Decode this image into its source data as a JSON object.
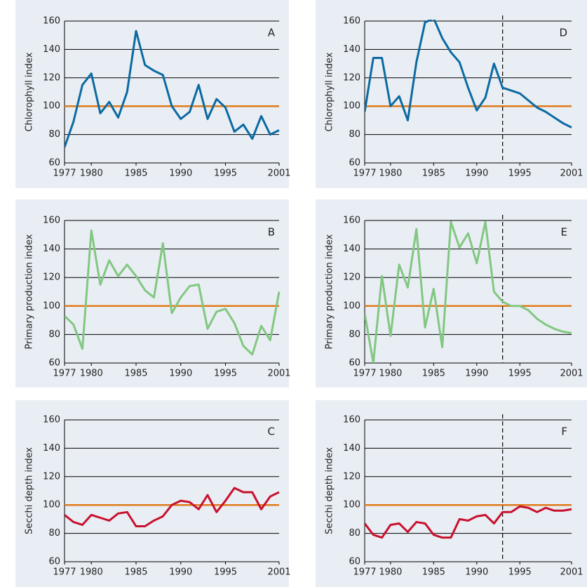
{
  "chart_data": [
    {
      "type": "line",
      "label": "A",
      "ylabel": "Chlorophyll index",
      "color": "#0b6aa2",
      "reference_line": 100,
      "reference_color": "#e07b1a",
      "x": [
        1977,
        1978,
        1979,
        1980,
        1981,
        1982,
        1983,
        1984,
        1985,
        1986,
        1987,
        1988,
        1989,
        1990,
        1991,
        1992,
        1993,
        1994,
        1995,
        1996,
        1997,
        1998,
        1999,
        2000,
        2001
      ],
      "values": [
        71,
        89,
        115,
        123,
        95,
        103,
        92,
        110,
        153,
        129,
        125,
        122,
        100,
        91,
        96,
        115,
        91,
        105,
        99,
        82,
        87,
        77,
        93,
        80,
        83
      ],
      "xlim": [
        1977,
        2001
      ],
      "xticks": [
        1977,
        1980,
        1985,
        1990,
        1995,
        2001
      ],
      "ylim": [
        60,
        160
      ],
      "yticks": [
        60,
        80,
        100,
        120,
        140,
        160
      ],
      "grid": true
    },
    {
      "type": "line",
      "label": "D",
      "ylabel": "Chlorophyll index",
      "color": "#0b6aa2",
      "reference_line": 100,
      "reference_color": "#e07b1a",
      "vline_x": 1993,
      "x": [
        1977,
        1978,
        1979,
        1980,
        1981,
        1982,
        1983,
        1984,
        1985,
        1986,
        1987,
        1988,
        1989,
        1990,
        1991,
        1992,
        1993,
        1994,
        1995,
        1996,
        1997,
        1998,
        1999,
        2000,
        2001
      ],
      "values": [
        96,
        134,
        134,
        100,
        107,
        90,
        131,
        159,
        162,
        148,
        138,
        131,
        113,
        97,
        106,
        130,
        113,
        111,
        109,
        104,
        99,
        96,
        92,
        88,
        85
      ],
      "xlim": [
        1977,
        2001
      ],
      "xticks": [
        1977,
        1980,
        1985,
        1990,
        1995,
        2001
      ],
      "ylim": [
        60,
        160
      ],
      "yticks": [
        60,
        80,
        100,
        120,
        140,
        160
      ],
      "grid": true
    },
    {
      "type": "line",
      "label": "B",
      "ylabel": "Primary production index",
      "color": "#82c782",
      "reference_line": 100,
      "reference_color": "#e07b1a",
      "x": [
        1977,
        1978,
        1979,
        1980,
        1981,
        1982,
        1983,
        1984,
        1985,
        1986,
        1987,
        1988,
        1989,
        1990,
        1991,
        1992,
        1993,
        1994,
        1995,
        1996,
        1997,
        1998,
        1999,
        2000,
        2001
      ],
      "values": [
        93,
        87,
        70,
        153,
        115,
        132,
        121,
        129,
        121,
        111,
        106,
        144,
        95,
        106,
        114,
        115,
        84,
        96,
        98,
        88,
        72,
        66,
        86,
        76,
        110
      ],
      "xlim": [
        1977,
        2001
      ],
      "xticks": [
        1977,
        1980,
        1985,
        1990,
        1995,
        2001
      ],
      "ylim": [
        60,
        160
      ],
      "yticks": [
        60,
        80,
        100,
        120,
        140,
        160
      ],
      "grid": true
    },
    {
      "type": "line",
      "label": "E",
      "ylabel": "Primary production index",
      "color": "#82c782",
      "reference_line": 100,
      "reference_color": "#e07b1a",
      "vline_x": 1993,
      "x": [
        1977,
        1978,
        1979,
        1980,
        1981,
        1982,
        1983,
        1984,
        1985,
        1986,
        1987,
        1988,
        1989,
        1990,
        1991,
        1992,
        1993,
        1994,
        1995,
        1996,
        1997,
        1998,
        1999,
        2000,
        2001
      ],
      "values": [
        95,
        60,
        121,
        79,
        129,
        113,
        154,
        85,
        112,
        71,
        159,
        141,
        151,
        130,
        159,
        110,
        103,
        100,
        100,
        97,
        91,
        87,
        84,
        82,
        81
      ],
      "xlim": [
        1977,
        2001
      ],
      "xticks": [
        1977,
        1980,
        1985,
        1990,
        1995,
        2001
      ],
      "ylim": [
        60,
        160
      ],
      "yticks": [
        60,
        80,
        100,
        120,
        140,
        160
      ],
      "grid": true
    },
    {
      "type": "line",
      "label": "C",
      "ylabel": "Secchi depth index",
      "color": "#c8102e",
      "reference_line": 100,
      "reference_color": "#e07b1a",
      "x": [
        1977,
        1978,
        1979,
        1980,
        1981,
        1982,
        1983,
        1984,
        1985,
        1986,
        1987,
        1988,
        1989,
        1990,
        1991,
        1992,
        1993,
        1994,
        1995,
        1996,
        1997,
        1998,
        1999,
        2000,
        2001
      ],
      "values": [
        93,
        88,
        86,
        93,
        91,
        89,
        94,
        95,
        85,
        85,
        89,
        92,
        100,
        103,
        102,
        97,
        107,
        95,
        103,
        112,
        109,
        109,
        97,
        106,
        109
      ],
      "xlim": [
        1977,
        2001
      ],
      "xticks": [
        1977,
        1980,
        1985,
        1990,
        1995,
        2001
      ],
      "ylim": [
        60,
        160
      ],
      "yticks": [
        60,
        80,
        100,
        120,
        140,
        160
      ],
      "grid": true
    },
    {
      "type": "line",
      "label": "F",
      "ylabel": "Secchi depth index",
      "color": "#c8102e",
      "reference_line": 100,
      "reference_color": "#e07b1a",
      "vline_x": 1993,
      "x": [
        1977,
        1978,
        1979,
        1980,
        1981,
        1982,
        1983,
        1984,
        1985,
        1986,
        1987,
        1988,
        1989,
        1990,
        1991,
        1992,
        1993,
        1994,
        1995,
        1996,
        1997,
        1998,
        1999,
        2000,
        2001
      ],
      "values": [
        87,
        79,
        77,
        86,
        87,
        81,
        88,
        87,
        79,
        77,
        77,
        90,
        89,
        92,
        93,
        87,
        95,
        95,
        99,
        98,
        95,
        98,
        96,
        96,
        97
      ],
      "xlim": [
        1977,
        2001
      ],
      "xticks": [
        1977,
        1980,
        1985,
        1990,
        1995,
        2001
      ],
      "ylim": [
        60,
        160
      ],
      "yticks": [
        60,
        80,
        100,
        120,
        140,
        160
      ],
      "grid": true
    }
  ]
}
